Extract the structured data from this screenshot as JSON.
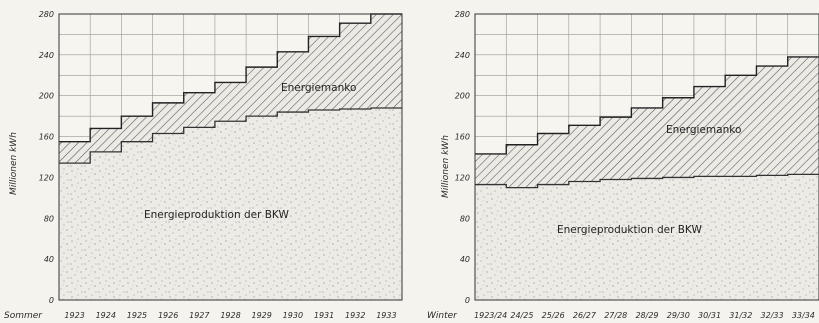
{
  "charts": [
    {
      "season_label": "Sommer",
      "ylabel": "Millionen kWh",
      "annotations": {
        "manko": "Energiemanko",
        "production": "Energieproduktion der BKW"
      }
    },
    {
      "season_label": "Winter",
      "ylabel": "Millionen kWh",
      "annotations": {
        "manko": "Energiemanko",
        "production": "Energieproduktion der BKW"
      }
    }
  ],
  "chart_data": [
    {
      "type": "area",
      "title": "",
      "xlabel": "Sommer",
      "ylabel": "Millionen kWh",
      "categories": [
        "1923",
        "1924",
        "1925",
        "1926",
        "1927",
        "1928",
        "1929",
        "1930",
        "1931",
        "1932",
        "1933"
      ],
      "ylim": [
        0,
        280
      ],
      "yticks": [
        0,
        40,
        80,
        120,
        160,
        200,
        240,
        280
      ],
      "grid": true,
      "series": [
        {
          "name": "Energieproduktion der BKW",
          "values": [
            134,
            145,
            155,
            163,
            169,
            175,
            180,
            184,
            186,
            187,
            188
          ]
        },
        {
          "name": "Energiemanko",
          "values": [
            155,
            168,
            180,
            193,
            203,
            213,
            228,
            243,
            258,
            271,
            280
          ]
        }
      ]
    },
    {
      "type": "area",
      "title": "",
      "xlabel": "Winter",
      "ylabel": "Millionen kWh",
      "categories": [
        "1923/24",
        "24/25",
        "25/26",
        "26/27",
        "27/28",
        "28/29",
        "29/30",
        "30/31",
        "31/32",
        "32/33",
        "33/34"
      ],
      "ylim": [
        0,
        280
      ],
      "yticks": [
        0,
        40,
        80,
        120,
        160,
        200,
        240,
        280
      ],
      "grid": true,
      "series": [
        {
          "name": "Energieproduktion der BKW",
          "values": [
            113,
            110,
            113,
            116,
            118,
            119,
            120,
            121,
            121,
            122,
            123
          ]
        },
        {
          "name": "Energiemanko",
          "values": [
            143,
            152,
            163,
            171,
            179,
            188,
            198,
            209,
            220,
            229,
            238
          ]
        }
      ]
    }
  ]
}
